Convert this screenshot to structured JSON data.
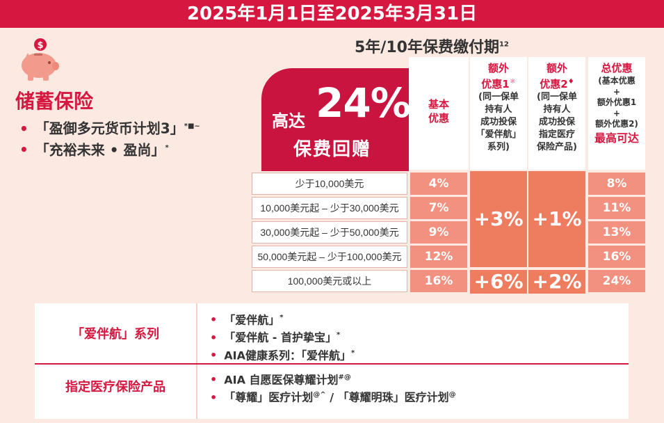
{
  "banner": {
    "text": "2025年1月1日至2025年3月31日"
  },
  "piggy": {
    "icon": "piggy-bank-icon",
    "coin_symbol": "$"
  },
  "product": {
    "title": "储蓄保险",
    "plans": [
      {
        "bullet": "•",
        "name": "「盈御多元货币计划3」",
        "mark": "*■~"
      },
      {
        "bullet": "•",
        "name": "「充裕未来 • 盈尚」",
        "mark": "*"
      }
    ]
  },
  "period": {
    "text": "5年/10年保费缴付期",
    "mark": "12"
  },
  "promo": {
    "upto": "高达",
    "percent": "24%",
    "gift": "保费回赠"
  },
  "headers": {
    "basic": {
      "title1": "基本",
      "title2": "优惠"
    },
    "extra1": {
      "title1": "额外",
      "title2": "优惠1",
      "mark": "☼",
      "desc": [
        "(同一保单",
        "持有人",
        "成功投保",
        "「爱伴航」",
        "系列)"
      ]
    },
    "extra2": {
      "title1": "额外",
      "title2": "优惠2",
      "mark": "♦",
      "desc": [
        "(同一保单",
        "持有人",
        "成功投保",
        "指定医疗",
        "保险产品)"
      ]
    },
    "total": {
      "title": "总优惠",
      "desc": [
        "(基本优惠",
        "+",
        "额外优惠1",
        "+",
        "额外优惠2)"
      ],
      "max": "最高可达"
    }
  },
  "rows": [
    {
      "range": "少于10,000美元",
      "basic": "4%",
      "total": "8%"
    },
    {
      "range": "10,000美元起 – 少于30,000美元",
      "basic": "7%",
      "total": "11%"
    },
    {
      "range": "30,000美元起 – 少于50,000美元",
      "basic": "9%",
      "total": "13%"
    },
    {
      "range": "50,000美元起 – 少于100,000美元",
      "basic": "12%",
      "total": "16%"
    },
    {
      "range": "100,000美元或以上",
      "basic": "16%",
      "total": "24%"
    }
  ],
  "extra_values": {
    "extra1_low": "+3%",
    "extra1_high": "+6%",
    "extra2_low": "+1%",
    "extra2_high": "+2%"
  },
  "legend": {
    "category1": "「爱伴航」系列",
    "items1": [
      {
        "bullet": "•",
        "text": "「爱伴航」",
        "mark": "*"
      },
      {
        "bullet": "•",
        "text": "「爱伴航 - 首护挚宝」",
        "mark": "*"
      },
      {
        "bullet": "•",
        "text": "AIA健康系列：「爱伴航」",
        "mark": "*"
      }
    ],
    "category2": "指定医疗保险产品",
    "items2": [
      {
        "bullet": "•",
        "text": "AIA 自愿医保尊耀计划",
        "mark": "#@"
      },
      {
        "bullet": "•",
        "text": "「尊耀」医疗计划",
        "mark": "@^",
        "text2": " / 「尊耀明珠」医疗计划",
        "mark2": "@"
      }
    ]
  },
  "colors": {
    "brand_red": "#d6173f",
    "salmon": "#f2917f",
    "orange": "#ee7d60",
    "background": "#fbe9e2"
  }
}
